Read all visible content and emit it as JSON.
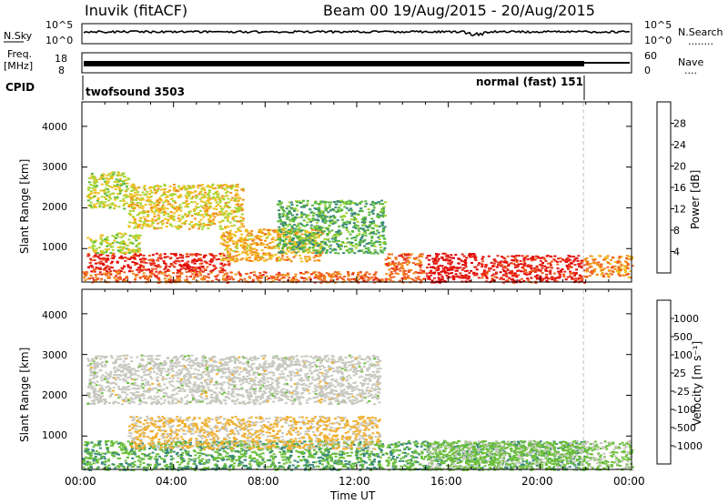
{
  "header": {
    "station": "Inuvik (fitACF)",
    "beam_date": "Beam 00  19/Aug/2015 - 20/Aug/2015"
  },
  "noise_panel": {
    "left_label": "N.Sky",
    "left_ticks": [
      "10^5",
      "10^0"
    ],
    "right_ticks": [
      "10^5",
      "10^0"
    ],
    "right_label": "N.Search",
    "right_dots": "........"
  },
  "freq_panel": {
    "left_label_1": "Freq.",
    "left_label_2": "[MHz]",
    "left_ticks": [
      "18",
      "8"
    ],
    "right_ticks": [
      "60",
      "0"
    ],
    "right_label": "Nave",
    "right_dots": "...."
  },
  "cpid": {
    "label": "CPID",
    "program_1": "twofsound 3503",
    "program_2": "normal (fast) 151"
  },
  "axes": {
    "x_ticks": [
      "00:00",
      "04:00",
      "08:00",
      "12:00",
      "16:00",
      "20:00",
      "00:00"
    ],
    "x_label": "Time UT",
    "y_ticks": [
      "1000",
      "2000",
      "3000",
      "4000"
    ],
    "y_label": "Slant Range [km]"
  },
  "colorbars": {
    "power": {
      "label": "Power [dB]",
      "ticks": [
        "4",
        "8",
        "12",
        "16",
        "20",
        "24",
        "28"
      ],
      "colors": [
        "#1a2bd8",
        "#2a55a8",
        "#3b8a78",
        "#58b83c",
        "#a8d638",
        "#f0c020",
        "#f0901c",
        "#f06020",
        "#e62a1c",
        "#e00000"
      ]
    },
    "velocity": {
      "label": "Velocity [m s⁻¹]",
      "ticks": [
        "1000",
        "500",
        "100",
        "25",
        "-25",
        "-100",
        "-500",
        "-1000"
      ],
      "colors": [
        "#1a2bd8",
        "#2f62a8",
        "#3a8a7a",
        "#6cbf3c",
        "#c8c8c0",
        "#f0b030",
        "#f07010",
        "#e63018",
        "#e00000"
      ]
    }
  },
  "chart_data": {
    "type": "heatmap",
    "x_range_hours": [
      0,
      24
    ],
    "y_range_km": [
      180,
      4600
    ],
    "mode_change_hour": 21.9,
    "panels": [
      {
        "name": "Power",
        "unit": "dB",
        "data_range": [
          0,
          30
        ],
        "clusters": [
          {
            "t0": 0.0,
            "t1": 13.1,
            "r0": 180,
            "r1": 450,
            "value": 22
          },
          {
            "t0": 0.2,
            "t1": 6.4,
            "r0": 450,
            "r1": 900,
            "value": 26
          },
          {
            "t0": 0.2,
            "t1": 2.5,
            "r0": 900,
            "r1": 1400,
            "value": 14
          },
          {
            "t0": 0.2,
            "t1": 2.0,
            "r0": 2000,
            "r1": 2900,
            "value": 14
          },
          {
            "t0": 2.0,
            "t1": 7.0,
            "r0": 1500,
            "r1": 2600,
            "value": 16
          },
          {
            "t0": 6.0,
            "t1": 10.5,
            "r0": 700,
            "r1": 1500,
            "value": 18
          },
          {
            "t0": 8.5,
            "t1": 13.2,
            "r0": 900,
            "r1": 2200,
            "value": 10
          },
          {
            "t0": 13.2,
            "t1": 14.9,
            "r0": 180,
            "r1": 900,
            "value": 22
          },
          {
            "t0": 15.0,
            "t1": 17.3,
            "r0": 180,
            "r1": 900,
            "value": 28
          },
          {
            "t0": 17.4,
            "t1": 21.9,
            "r0": 180,
            "r1": 850,
            "value": 26
          },
          {
            "t0": 21.9,
            "t1": 24.0,
            "r0": 300,
            "r1": 850,
            "value": 20
          }
        ]
      },
      {
        "name": "Velocity",
        "unit": "m s-1",
        "data_range": [
          -1000,
          1000
        ],
        "clusters": [
          {
            "t0": 0.0,
            "t1": 13.1,
            "r0": 180,
            "r1": 900,
            "value": -300
          },
          {
            "t0": 2.0,
            "t1": 13.0,
            "r0": 700,
            "r1": 1500,
            "value": 150
          },
          {
            "t0": 0.2,
            "t1": 13.0,
            "r0": 1800,
            "r1": 3000,
            "value": 0
          },
          {
            "t0": 13.2,
            "t1": 21.9,
            "r0": 180,
            "r1": 900,
            "value": -300
          },
          {
            "t0": 15.0,
            "t1": 24.0,
            "r0": 180,
            "r1": 900,
            "value": -150
          }
        ]
      }
    ]
  }
}
